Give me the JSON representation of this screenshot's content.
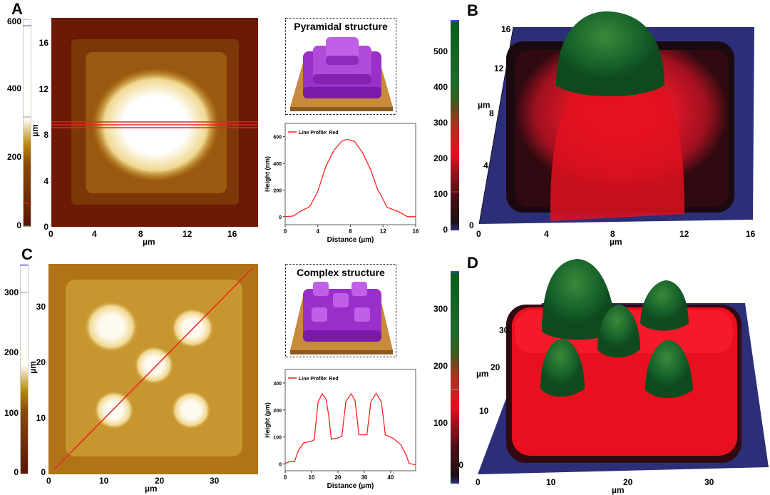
{
  "panels": {
    "a": {
      "label": "A",
      "colorbar_ticks": [
        "600",
        "400",
        "200",
        "0"
      ],
      "colorbar_unit": "µm",
      "y_ticks": [
        "16",
        "12",
        "8",
        "4",
        "0"
      ],
      "x_ticks": [
        "0",
        "4",
        "8",
        "12",
        "16"
      ],
      "x_unit": "µm"
    },
    "b": {
      "label": "B",
      "colorbar_ticks": [
        "500",
        "400",
        "300",
        "200",
        "100",
        "0"
      ],
      "y_ticks": [
        "16",
        "12",
        "8",
        "4",
        "0"
      ],
      "y_unit": "µm",
      "x_ticks": [
        "0",
        "4",
        "8",
        "12",
        "16"
      ],
      "x_unit": "µm"
    },
    "c": {
      "label": "C",
      "colorbar_ticks": [
        "300",
        "200",
        "100",
        "0"
      ],
      "colorbar_unit": "µm",
      "y_ticks": [
        "30",
        "20",
        "10",
        "0"
      ],
      "x_ticks": [
        "0",
        "10",
        "20",
        "30"
      ],
      "x_unit": "µm"
    },
    "d": {
      "label": "D",
      "colorbar_ticks": [
        "300",
        "200",
        "100",
        "0"
      ],
      "y_ticks": [
        "30",
        "20",
        "10"
      ],
      "y_unit": "µm",
      "x_ticks": [
        "0",
        "10",
        "20",
        "30"
      ],
      "x_unit": "µm"
    }
  },
  "schematics": {
    "pyramid_title": "Pyramidal structure",
    "complex_title": "Complex structure"
  },
  "colors": {
    "profile": "#ff2020",
    "purple": "#9b2fc9",
    "base": "#c98a3a",
    "green": "#1e6b2a",
    "red": "#e01020",
    "blue": "#2c2f78"
  },
  "chart_data": [
    {
      "type": "line",
      "title": "",
      "legend": "Line Profile: Red",
      "legend_placement": "top-left",
      "xlabel": "Distance (µm)",
      "ylabel": "Height (nm)",
      "xlim": [
        0,
        16
      ],
      "ylim": [
        -60,
        700
      ],
      "x_ticks": [
        "0",
        "4",
        "8",
        "12",
        "16"
      ],
      "y_ticks": [
        "0",
        "200",
        "400",
        "600"
      ],
      "x": [
        0,
        1,
        2,
        3,
        4,
        5,
        6,
        7,
        7.6,
        8.5,
        9.5,
        10.5,
        11.3,
        12,
        12.5,
        14,
        15,
        16
      ],
      "y": [
        0,
        5,
        45,
        75,
        190,
        380,
        500,
        570,
        580,
        565,
        480,
        350,
        210,
        130,
        70,
        35,
        0,
        0
      ]
    },
    {
      "type": "line",
      "title": "",
      "legend": "Line Profile: Red",
      "legend_placement": "top-left",
      "xlabel": "Distance (µm)",
      "ylabel": "Height (µm)",
      "xlim": [
        0,
        49.5
      ],
      "ylim": [
        -25,
        350
      ],
      "x_ticks": [
        "0",
        "10",
        "20",
        "30",
        "40"
      ],
      "y_ticks": [
        "0",
        "100",
        "200",
        "300"
      ],
      "x": [
        0,
        2,
        3.5,
        5,
        7,
        10,
        11,
        12.5,
        14,
        15.5,
        16.5,
        17.5,
        20,
        21.5,
        23,
        25,
        26.5,
        28,
        31,
        32.5,
        34.5,
        36.5,
        38,
        41,
        44,
        46,
        47,
        48,
        49.5
      ],
      "y": [
        2,
        10,
        8,
        50,
        78,
        85,
        90,
        230,
        260,
        240,
        180,
        92,
        96,
        103,
        230,
        260,
        235,
        108,
        108,
        230,
        262,
        230,
        108,
        95,
        70,
        30,
        2,
        0,
        -3
      ]
    }
  ]
}
